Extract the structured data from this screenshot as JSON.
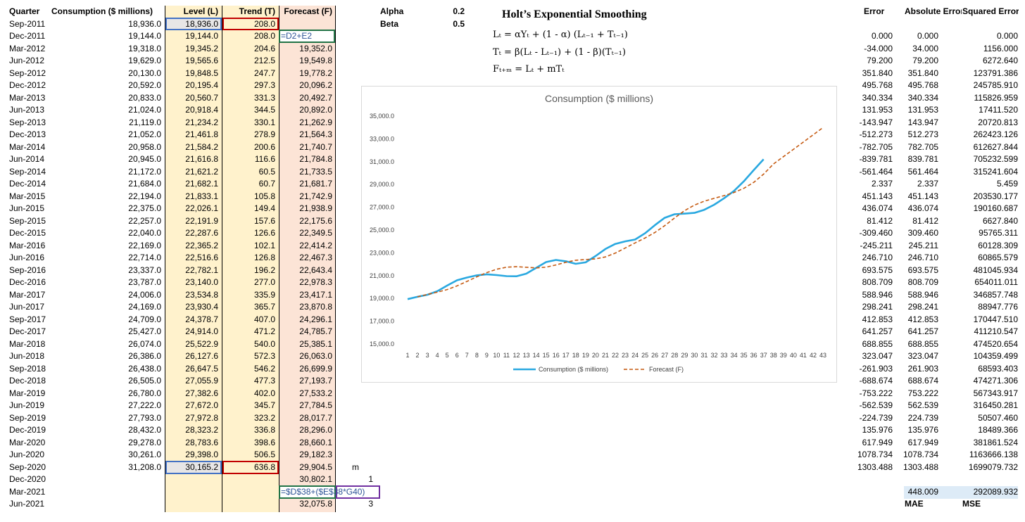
{
  "headers": [
    "Quarter",
    "Consumption  ($ millions)",
    "Level (L)",
    "Trend (T)",
    "Forecast (F)"
  ],
  "m_header": "m",
  "table": {
    "rows": [
      [
        "Sep-2011",
        "18,936.0",
        "18,936.0",
        "208.0",
        null,
        null
      ],
      [
        "Dec-2011",
        "19,144.0",
        "19,144.0",
        "208.0",
        "=D2+E2",
        null
      ],
      [
        "Mar-2012",
        "19,318.0",
        "19,345.2",
        "204.6",
        "19,352.0",
        null
      ],
      [
        "Jun-2012",
        "19,629.0",
        "19,565.6",
        "212.5",
        "19,549.8",
        null
      ],
      [
        "Sep-2012",
        "20,130.0",
        "19,848.5",
        "247.7",
        "19,778.2",
        null
      ],
      [
        "Dec-2012",
        "20,592.0",
        "20,195.4",
        "297.3",
        "20,096.2",
        null
      ],
      [
        "Mar-2013",
        "20,833.0",
        "20,560.7",
        "331.3",
        "20,492.7",
        null
      ],
      [
        "Jun-2013",
        "21,024.0",
        "20,918.4",
        "344.5",
        "20,892.0",
        null
      ],
      [
        "Sep-2013",
        "21,119.0",
        "21,234.2",
        "330.1",
        "21,262.9",
        null
      ],
      [
        "Dec-2013",
        "21,052.0",
        "21,461.8",
        "278.9",
        "21,564.3",
        null
      ],
      [
        "Mar-2014",
        "20,958.0",
        "21,584.2",
        "200.6",
        "21,740.7",
        null
      ],
      [
        "Jun-2014",
        "20,945.0",
        "21,616.8",
        "116.6",
        "21,784.8",
        null
      ],
      [
        "Sep-2014",
        "21,172.0",
        "21,621.2",
        "60.5",
        "21,733.5",
        null
      ],
      [
        "Dec-2014",
        "21,684.0",
        "21,682.1",
        "60.7",
        "21,681.7",
        null
      ],
      [
        "Mar-2015",
        "22,194.0",
        "21,833.1",
        "105.8",
        "21,742.9",
        null
      ],
      [
        "Jun-2015",
        "22,375.0",
        "22,026.1",
        "149.4",
        "21,938.9",
        null
      ],
      [
        "Sep-2015",
        "22,257.0",
        "22,191.9",
        "157.6",
        "22,175.6",
        null
      ],
      [
        "Dec-2015",
        "22,040.0",
        "22,287.6",
        "126.6",
        "22,349.5",
        null
      ],
      [
        "Mar-2016",
        "22,169.0",
        "22,365.2",
        "102.1",
        "22,414.2",
        null
      ],
      [
        "Jun-2016",
        "22,714.0",
        "22,516.6",
        "126.8",
        "22,467.3",
        null
      ],
      [
        "Sep-2016",
        "23,337.0",
        "22,782.1",
        "196.2",
        "22,643.4",
        null
      ],
      [
        "Dec-2016",
        "23,787.0",
        "23,140.0",
        "277.0",
        "22,978.3",
        null
      ],
      [
        "Mar-2017",
        "24,006.0",
        "23,534.8",
        "335.9",
        "23,417.1",
        null
      ],
      [
        "Jun-2017",
        "24,169.0",
        "23,930.4",
        "365.7",
        "23,870.8",
        null
      ],
      [
        "Sep-2017",
        "24,709.0",
        "24,378.7",
        "407.0",
        "24,296.1",
        null
      ],
      [
        "Dec-2017",
        "25,427.0",
        "24,914.0",
        "471.2",
        "24,785.7",
        null
      ],
      [
        "Mar-2018",
        "26,074.0",
        "25,522.9",
        "540.0",
        "25,385.1",
        null
      ],
      [
        "Jun-2018",
        "26,386.0",
        "26,127.6",
        "572.3",
        "26,063.0",
        null
      ],
      [
        "Sep-2018",
        "26,438.0",
        "26,647.5",
        "546.2",
        "26,699.9",
        null
      ],
      [
        "Dec-2018",
        "26,505.0",
        "27,055.9",
        "477.3",
        "27,193.7",
        null
      ],
      [
        "Mar-2019",
        "26,780.0",
        "27,382.6",
        "402.0",
        "27,533.2",
        null
      ],
      [
        "Jun-2019",
        "27,222.0",
        "27,672.0",
        "345.7",
        "27,784.5",
        null
      ],
      [
        "Sep-2019",
        "27,793.0",
        "27,972.8",
        "323.2",
        "28,017.7",
        null
      ],
      [
        "Dec-2019",
        "28,432.0",
        "28,323.2",
        "336.8",
        "28,296.0",
        null
      ],
      [
        "Mar-2020",
        "29,278.0",
        "28,783.6",
        "398.6",
        "28,660.1",
        null
      ],
      [
        "Jun-2020",
        "30,261.0",
        "29,398.0",
        "506.5",
        "29,182.3",
        null
      ],
      [
        "Sep-2020",
        "31,208.0",
        "30,165.2",
        "636.8",
        "29,904.5",
        null
      ],
      [
        "Dec-2020",
        null,
        null,
        null,
        "30,802.1",
        "1"
      ],
      [
        "Mar-2021",
        null,
        null,
        null,
        "=$D$38+($E$38*G40)",
        null
      ],
      [
        "Jun-2021",
        null,
        null,
        null,
        "32,075.8",
        "3"
      ]
    ]
  },
  "params": [
    {
      "name": "Alpha",
      "value": "0.2"
    },
    {
      "name": "Beta",
      "value": "0.5"
    }
  ],
  "method": {
    "title": "Holt’s Exponential Smoothing",
    "formulas": [
      "Lₜ  =  αYₜ +  (1 - α) (Lₜ₋₁ + Tₜ₋₁)",
      "Tₜ  =  β(Lₜ - Lₜ₋₁)  +  (1 - β)(Tₜ₋₁)",
      "Fₜ₊ₘ = Lₜ + mTₜ"
    ]
  },
  "errors": {
    "headers": [
      "Error",
      "Absolute Error",
      "Squared Error"
    ],
    "rows": [
      [
        "0.000",
        "0.000",
        "0.000"
      ],
      [
        "-34.000",
        "34.000",
        "1156.000"
      ],
      [
        "79.200",
        "79.200",
        "6272.640"
      ],
      [
        "351.840",
        "351.840",
        "123791.386"
      ],
      [
        "495.768",
        "495.768",
        "245785.910"
      ],
      [
        "340.334",
        "340.334",
        "115826.959"
      ],
      [
        "131.953",
        "131.953",
        "17411.520"
      ],
      [
        "-143.947",
        "143.947",
        "20720.813"
      ],
      [
        "-512.273",
        "512.273",
        "262423.126"
      ],
      [
        "-782.705",
        "782.705",
        "612627.844"
      ],
      [
        "-839.781",
        "839.781",
        "705232.599"
      ],
      [
        "-561.464",
        "561.464",
        "315241.604"
      ],
      [
        "2.337",
        "2.337",
        "5.459"
      ],
      [
        "451.143",
        "451.143",
        "203530.177"
      ],
      [
        "436.074",
        "436.074",
        "190160.687"
      ],
      [
        "81.412",
        "81.412",
        "6627.840"
      ],
      [
        "-309.460",
        "309.460",
        "95765.311"
      ],
      [
        "-245.211",
        "245.211",
        "60128.309"
      ],
      [
        "246.710",
        "246.710",
        "60865.579"
      ],
      [
        "693.575",
        "693.575",
        "481045.934"
      ],
      [
        "808.709",
        "808.709",
        "654011.011"
      ],
      [
        "588.946",
        "588.946",
        "346857.748"
      ],
      [
        "298.241",
        "298.241",
        "88947.776"
      ],
      [
        "412.853",
        "412.853",
        "170447.510"
      ],
      [
        "641.257",
        "641.257",
        "411210.547"
      ],
      [
        "688.855",
        "688.855",
        "474520.654"
      ],
      [
        "323.047",
        "323.047",
        "104359.499"
      ],
      [
        "-261.903",
        "261.903",
        "68593.403"
      ],
      [
        "-688.674",
        "688.674",
        "474271.306"
      ],
      [
        "-753.222",
        "753.222",
        "567343.917"
      ],
      [
        "-562.539",
        "562.539",
        "316450.281"
      ],
      [
        "-224.739",
        "224.739",
        "50507.460"
      ],
      [
        "135.976",
        "135.976",
        "18489.366"
      ],
      [
        "617.949",
        "617.949",
        "381861.524"
      ],
      [
        "1078.734",
        "1078.734",
        "1163666.138"
      ],
      [
        "1303.488",
        "1303.488",
        "1699079.732"
      ]
    ],
    "summary": {
      "mae": "448.009",
      "mse": "292089.932",
      "mae_label": "MAE",
      "mse_label": "MSE"
    }
  },
  "chart_data": {
    "type": "line",
    "title": "Consumption ($ millions)",
    "categories": [
      1,
      2,
      3,
      4,
      5,
      6,
      7,
      8,
      9,
      10,
      11,
      12,
      13,
      14,
      15,
      16,
      17,
      18,
      19,
      20,
      21,
      22,
      23,
      24,
      25,
      26,
      27,
      28,
      29,
      30,
      31,
      32,
      33,
      34,
      35,
      36,
      37,
      38,
      39,
      40,
      41,
      42,
      43
    ],
    "series": [
      {
        "name": "Consumption  ($ millions)",
        "color": "#29a8e0",
        "dash": false,
        "values": [
          18936.0,
          19144.0,
          19318.0,
          19629.0,
          20130.0,
          20592.0,
          20833.0,
          21024.0,
          21119.0,
          21052.0,
          20958.0,
          20945.0,
          21172.0,
          21684.0,
          22194.0,
          22375.0,
          22257.0,
          22040.0,
          22169.0,
          22714.0,
          23337.0,
          23787.0,
          24006.0,
          24169.0,
          24709.0,
          25427.0,
          26074.0,
          26386.0,
          26438.0,
          26505.0,
          26780.0,
          27222.0,
          27793.0,
          28432.0,
          29278.0,
          30261.0,
          31208.0,
          null,
          null,
          null,
          null,
          null,
          null
        ]
      },
      {
        "name": "Forecast (F)",
        "color": "#c55a11",
        "dash": true,
        "values": [
          null,
          19144.0,
          19352.0,
          19549.8,
          19778.2,
          20096.2,
          20492.7,
          20892.0,
          21262.9,
          21564.3,
          21740.7,
          21784.8,
          21733.5,
          21681.7,
          21742.9,
          21938.9,
          22175.6,
          22349.5,
          22414.2,
          22467.3,
          22643.4,
          22978.3,
          23417.1,
          23870.8,
          24296.1,
          24785.7,
          25385.1,
          26063.0,
          26699.9,
          27193.7,
          27533.2,
          27784.5,
          28017.7,
          28296.0,
          28660.1,
          29182.3,
          29904.5,
          30802.1,
          31438.8,
          32075.8,
          32712.6,
          33349.4,
          33986.2
        ]
      }
    ],
    "ylim": [
      15000,
      35000
    ],
    "yticks": [
      {
        "value": 15000,
        "label": "15,000.0"
      },
      {
        "value": 17000,
        "label": "17,000.0"
      },
      {
        "value": 19000,
        "label": "19,000.0"
      },
      {
        "value": 21000,
        "label": "21,000.0"
      },
      {
        "value": 23000,
        "label": "23,000.0"
      },
      {
        "value": 25000,
        "label": "25,000.0"
      },
      {
        "value": 27000,
        "label": "27,000.0"
      },
      {
        "value": 29000,
        "label": "29,000.0"
      },
      {
        "value": 31000,
        "label": "31,000.0"
      },
      {
        "value": 33000,
        "label": "33,000.0"
      },
      {
        "value": 35000,
        "label": "35,000.0"
      }
    ],
    "grid": false,
    "legend": "bottom"
  }
}
